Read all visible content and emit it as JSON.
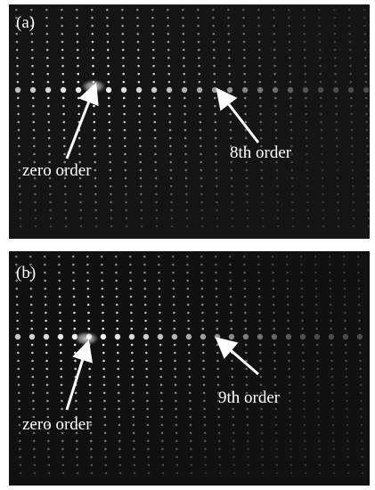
{
  "panels": [
    {
      "label": "(a)",
      "annotations": [
        "zero order",
        "8th order"
      ]
    },
    {
      "label": "(b)",
      "annotations": [
        "zero order",
        "9th order"
      ]
    }
  ]
}
